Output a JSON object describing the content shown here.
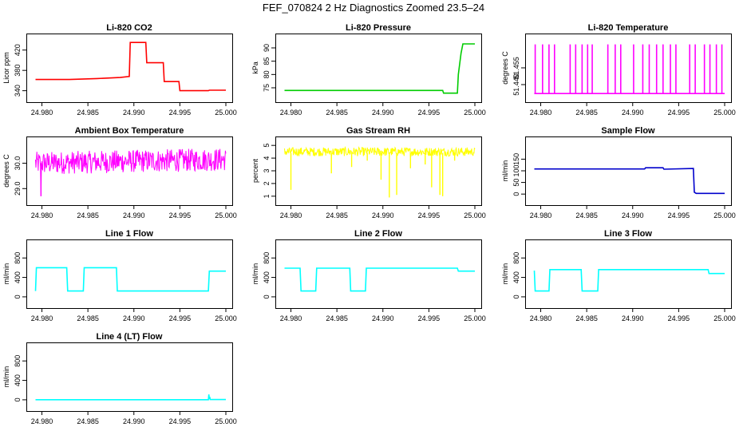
{
  "page_title": "FEF_070824  2 Hz Diagnostics Zoomed 23.5–24",
  "colors": {
    "red": "#ff0000",
    "green": "#00cc00",
    "magenta": "#ff00ff",
    "yellow": "#ffff00",
    "blue": "#0000cc",
    "cyan": "#00ffff"
  },
  "chart_data": [
    {
      "type": "line",
      "title": "Li-820 CO2",
      "ylabel": "Licor ppm",
      "color": "#ff0000",
      "xlim": [
        24.979,
        25.0
      ],
      "ylim": [
        330,
        440
      ],
      "xticks": [
        "24.980",
        "24.985",
        "24.990",
        "24.995",
        "25.000"
      ],
      "xtick_values": [
        24.98,
        24.985,
        24.99,
        24.995,
        25.0
      ],
      "yticks": [
        "340",
        "380",
        "420"
      ],
      "ytick_values": [
        340,
        380,
        420
      ],
      "series": [
        {
          "name": "CO2",
          "x": [
            24.9793,
            24.983,
            24.986,
            24.9885,
            24.9895,
            24.9896,
            24.9913,
            24.9914,
            24.9932,
            24.9933,
            24.9949,
            24.995,
            24.9981,
            24.9982,
            25.0
          ],
          "y": [
            362,
            362,
            364,
            366,
            368,
            435,
            435,
            395,
            395,
            358,
            358,
            340,
            340,
            341,
            341
          ]
        }
      ]
    },
    {
      "type": "line",
      "title": "Li-820 Pressure",
      "ylabel": "kPa",
      "color": "#00cc00",
      "xlim": [
        24.979,
        25.0
      ],
      "ylim": [
        72,
        93
      ],
      "xticks": [
        "24.980",
        "24.985",
        "24.990",
        "24.995",
        "25.000"
      ],
      "xtick_values": [
        24.98,
        24.985,
        24.99,
        24.995,
        25.0
      ],
      "yticks": [
        "75",
        "80",
        "85",
        "90"
      ],
      "ytick_values": [
        75,
        80,
        85,
        90
      ],
      "series": [
        {
          "name": "Pressure",
          "x": [
            24.9793,
            24.9965,
            24.9966,
            24.9981,
            24.9982,
            24.9985,
            24.9987,
            25.0
          ],
          "y": [
            74,
            74,
            73,
            73,
            80,
            88,
            91.5,
            91.5
          ]
        }
      ]
    },
    {
      "type": "line",
      "title": "Li-820 Temperature",
      "ylabel": "degrees C",
      "color": "#ff00ff",
      "xlim": [
        24.979,
        25.0
      ],
      "ylim": [
        51.43,
        51.48
      ],
      "xticks": [
        "24.980",
        "24.985",
        "24.990",
        "24.995",
        "25.000"
      ],
      "xtick_values": [
        24.98,
        24.985,
        24.99,
        24.995,
        25.0
      ],
      "yticks": [
        "51.440",
        "51.455"
      ],
      "ytick_values": [
        51.44,
        51.455
      ],
      "spike_low": 51.432,
      "spike_high": 51.476,
      "spike_x": [
        24.9794,
        24.9802,
        24.9809,
        24.9815,
        24.9832,
        24.9838,
        24.9845,
        24.9851,
        24.9856,
        24.9873,
        24.9881,
        24.9887,
        24.9901,
        24.9911,
        24.9918,
        24.9926,
        24.9933,
        24.9941,
        24.9947,
        24.9962,
        24.9968,
        24.9978,
        24.9984,
        24.9991,
        24.9997
      ]
    },
    {
      "type": "line",
      "title": "Ambient Box Temperature",
      "ylabel": "degrees C",
      "color": "#ff00ff",
      "xlim": [
        24.979,
        25.0
      ],
      "ylim": [
        28.6,
        30.8
      ],
      "xticks": [
        "24.980",
        "24.985",
        "24.990",
        "24.995",
        "25.000"
      ],
      "xtick_values": [
        24.98,
        24.985,
        24.99,
        24.995,
        25.0
      ],
      "yticks": [
        "29.0",
        "30.0"
      ],
      "ytick_values": [
        29.0,
        30.0
      ],
      "noise": {
        "base_start": 30.0,
        "base_end": 30.15,
        "amplitude": 0.45,
        "dip_x": 24.9799,
        "dip_y": 28.7
      }
    },
    {
      "type": "line",
      "title": "Gas Stream RH",
      "ylabel": "percent",
      "color": "#ffff00",
      "xlim": [
        24.979,
        25.0
      ],
      "ylim": [
        0.8,
        5.2
      ],
      "xticks": [
        "24.980",
        "24.985",
        "24.990",
        "24.995",
        "25.000"
      ],
      "xtick_values": [
        24.98,
        24.985,
        24.99,
        24.995,
        25.0
      ],
      "yticks": [
        "1",
        "2",
        "3",
        "4",
        "5"
      ],
      "ytick_values": [
        1,
        2,
        3,
        4,
        5
      ],
      "noise": {
        "base_start": 4.5,
        "base_end": 4.5,
        "amplitude": 0.35
      },
      "dips": [
        {
          "x": 24.98,
          "y": 1.5
        },
        {
          "x": 24.9844,
          "y": 2.8
        },
        {
          "x": 24.9866,
          "y": 3.3
        },
        {
          "x": 24.9883,
          "y": 3.8
        },
        {
          "x": 24.9898,
          "y": 2.3
        },
        {
          "x": 24.9907,
          "y": 0.9
        },
        {
          "x": 24.9915,
          "y": 1.1
        },
        {
          "x": 24.993,
          "y": 3.2
        },
        {
          "x": 24.9946,
          "y": 3.5
        },
        {
          "x": 24.9953,
          "y": 1.7
        },
        {
          "x": 24.9962,
          "y": 1.1
        },
        {
          "x": 24.9965,
          "y": 1.0
        },
        {
          "x": 24.9978,
          "y": 3.8
        }
      ]
    },
    {
      "type": "line",
      "title": "Sample Flow",
      "ylabel": "ml/min",
      "color": "#0000cc",
      "xlim": [
        24.979,
        25.0
      ],
      "ylim": [
        -20,
        220
      ],
      "xticks": [
        "24.980",
        "24.985",
        "24.990",
        "24.995",
        "25.000"
      ],
      "xtick_values": [
        24.98,
        24.985,
        24.99,
        24.995,
        25.0
      ],
      "yticks": [
        "0",
        "50",
        "100",
        "150"
      ],
      "ytick_values": [
        0,
        50,
        100,
        150
      ],
      "series": [
        {
          "name": "Sample Flow",
          "x": [
            24.9793,
            24.9913,
            24.9914,
            24.9933,
            24.9934,
            24.9966,
            24.9967,
            24.9969,
            25.0
          ],
          "y": [
            108,
            108,
            113,
            113,
            107,
            110,
            8,
            3,
            3
          ]
        }
      ]
    },
    {
      "type": "line",
      "title": "Line 1 Flow",
      "ylabel": "ml/min",
      "color": "#00ffff",
      "xlim": [
        24.979,
        25.0
      ],
      "ylim": [
        -100,
        1050
      ],
      "xticks": [
        "24.980",
        "24.985",
        "24.990",
        "24.995",
        "25.000"
      ],
      "xtick_values": [
        24.98,
        24.985,
        24.99,
        24.995,
        25.0
      ],
      "yticks": [
        "0",
        "400",
        "800"
      ],
      "ytick_values": [
        0,
        400,
        800
      ],
      "series": [
        {
          "name": "Line 1",
          "x": [
            24.9793,
            24.9794,
            24.9827,
            24.9828,
            24.9845,
            24.9846,
            24.9881,
            24.9882,
            24.9981,
            24.9982,
            25.0
          ],
          "y": [
            120,
            600,
            600,
            120,
            120,
            600,
            600,
            120,
            120,
            530,
            530
          ]
        }
      ]
    },
    {
      "type": "line",
      "title": "Line 2 Flow",
      "ylabel": "ml/min",
      "color": "#00ffff",
      "xlim": [
        24.979,
        25.0
      ],
      "ylim": [
        -100,
        1050
      ],
      "xticks": [
        "24.980",
        "24.985",
        "24.990",
        "24.995",
        "25.000"
      ],
      "xtick_values": [
        24.98,
        24.985,
        24.99,
        24.995,
        25.0
      ],
      "yticks": [
        "0",
        "400",
        "800"
      ],
      "ytick_values": [
        0,
        400,
        800
      ],
      "series": [
        {
          "name": "Line 2",
          "x": [
            24.9793,
            24.981,
            24.9811,
            24.9827,
            24.9828,
            24.9864,
            24.9865,
            24.9881,
            24.9882,
            24.9981,
            24.9982,
            25.0
          ],
          "y": [
            590,
            590,
            120,
            120,
            590,
            590,
            120,
            120,
            590,
            590,
            530,
            530
          ]
        }
      ]
    },
    {
      "type": "line",
      "title": "Line 3 Flow",
      "ylabel": "ml/min",
      "color": "#00ffff",
      "xlim": [
        24.979,
        25.0
      ],
      "ylim": [
        -100,
        1050
      ],
      "xticks": [
        "24.980",
        "24.985",
        "24.990",
        "24.995",
        "25.000"
      ],
      "xtick_values": [
        24.98,
        24.985,
        24.99,
        24.995,
        25.0
      ],
      "yticks": [
        "0",
        "400",
        "800"
      ],
      "ytick_values": [
        0,
        400,
        800
      ],
      "series": [
        {
          "name": "Line 3",
          "x": [
            24.9793,
            24.9794,
            24.9795,
            24.9809,
            24.981,
            24.9844,
            24.9845,
            24.9862,
            24.9863,
            24.9982,
            24.9983,
            25.0
          ],
          "y": [
            540,
            120,
            120,
            120,
            560,
            560,
            120,
            120,
            560,
            560,
            480,
            480
          ]
        }
      ]
    },
    {
      "type": "line",
      "title": "Line 4 (LT) Flow",
      "ylabel": "ml/min",
      "color": "#00ffff",
      "xlim": [
        24.979,
        25.0
      ],
      "ylim": [
        -100,
        1050
      ],
      "xticks": [
        "24.980",
        "24.985",
        "24.990",
        "24.995",
        "25.000"
      ],
      "xtick_values": [
        24.98,
        24.985,
        24.99,
        24.995,
        25.0
      ],
      "yticks": [
        "0",
        "400",
        "800"
      ],
      "ytick_values": [
        0,
        400,
        800
      ],
      "series": [
        {
          "name": "Line 4",
          "x": [
            24.9793,
            24.9981,
            24.99815,
            24.9982,
            24.99825,
            24.9983,
            25.0
          ],
          "y": [
            2,
            2,
            110,
            15,
            60,
            5,
            5
          ]
        }
      ]
    }
  ]
}
